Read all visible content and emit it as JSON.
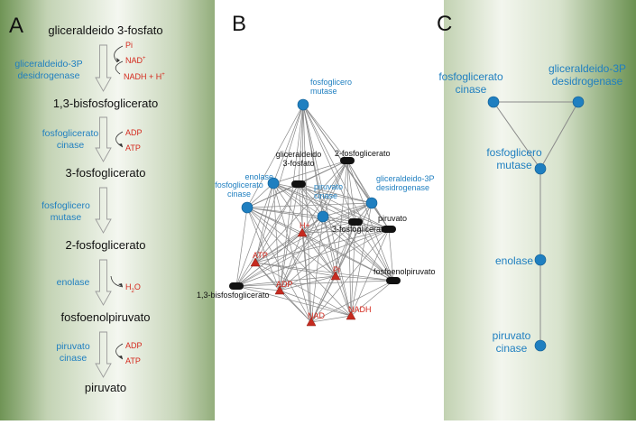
{
  "colors": {
    "metabolite": "#111111",
    "enzyme": "#1f7fc0",
    "cofactor": "#d4291d",
    "edge": "#888888",
    "panel_green": "#6f9455"
  },
  "panels": {
    "A": {
      "letter": "A",
      "metabolites": [
        "gliceraldeido 3-fosfato",
        "1,3-bisfosfoglicerato",
        "3-fosfoglicerato",
        "2-fosfoglicerato",
        "fosfoenolpiruvato",
        "piruvato"
      ],
      "enzymes": [
        [
          "gliceraldeido-3P",
          "desidrogenase"
        ],
        [
          "fosfoglicerato",
          "cinase"
        ],
        [
          "fosfoglicero",
          "mutase"
        ],
        [
          "enolase"
        ],
        [
          "piruvato",
          "cinase"
        ]
      ],
      "cofactors": {
        "step1_in": "Pi",
        "step1_in2": "NAD",
        "step1_in2_sup": "+",
        "step1_out": "NADH + H",
        "step1_out_sup": "+",
        "step2_in": "ADP",
        "step2_out": "ATP",
        "step4_out": "H",
        "step4_out_sub": "2",
        "step4_out_tail": "O",
        "step5_in": "ADP",
        "step5_out": "ATP"
      }
    },
    "B": {
      "letter": "B",
      "nodes": [
        {
          "id": "fosfoglicero_mutase",
          "lines": [
            "fosfoglicero",
            "mutase"
          ],
          "kind": "enzyme"
        },
        {
          "id": "enolase",
          "lines": [
            "enolase"
          ],
          "kind": "enzyme"
        },
        {
          "id": "fosfoglicerato_cinase",
          "lines": [
            "fosfoglicerato",
            "cinase"
          ],
          "kind": "enzyme"
        },
        {
          "id": "piruvato_cinase",
          "lines": [
            "piruvato",
            "cinase"
          ],
          "kind": "enzyme"
        },
        {
          "id": "gapdh",
          "lines": [
            "gliceraldeido-3P",
            "desidrogenase"
          ],
          "kind": "enzyme"
        },
        {
          "id": "2pg",
          "lines": [
            "2-fosfoglicerato"
          ],
          "kind": "metabolite"
        },
        {
          "id": "g3p",
          "lines": [
            "gliceraldeido",
            "3-fosfato"
          ],
          "kind": "metabolite"
        },
        {
          "id": "3pg",
          "lines": [
            "3-fosfoglicerato"
          ],
          "kind": "metabolite"
        },
        {
          "id": "piruvato",
          "lines": [
            "piruvato"
          ],
          "kind": "metabolite"
        },
        {
          "id": "pep",
          "lines": [
            "fosfoenolpiruvato"
          ],
          "kind": "metabolite"
        },
        {
          "id": "13bpg",
          "lines": [
            "1,3-bisfosfoglicerato"
          ],
          "kind": "metabolite"
        },
        {
          "id": "h",
          "lines": [
            "H+"
          ],
          "kind": "cofactor"
        },
        {
          "id": "atp",
          "lines": [
            "ATP"
          ],
          "kind": "cofactor"
        },
        {
          "id": "pi",
          "lines": [
            "Pi"
          ],
          "kind": "cofactor"
        },
        {
          "id": "adp",
          "lines": [
            "ADP"
          ],
          "kind": "cofactor"
        },
        {
          "id": "nad",
          "lines": [
            "NAD"
          ],
          "kind": "cofactor"
        },
        {
          "id": "nadh",
          "lines": [
            "NADH"
          ],
          "kind": "cofactor"
        }
      ]
    },
    "C": {
      "letter": "C",
      "nodes": [
        {
          "id": "c_pgk",
          "lines": [
            "fosfoglicerato",
            "cinase"
          ]
        },
        {
          "id": "c_gapdh",
          "lines": [
            "gliceraldeido-3P",
            "desidrogenase"
          ]
        },
        {
          "id": "c_pgm",
          "lines": [
            "fosfoglicero",
            "mutase"
          ]
        },
        {
          "id": "c_eno",
          "lines": [
            "enolase"
          ]
        },
        {
          "id": "c_pk",
          "lines": [
            "piruvato",
            "cinase"
          ]
        }
      ],
      "edges": [
        [
          "c_pgk",
          "c_gapdh"
        ],
        [
          "c_pgk",
          "c_pgm"
        ],
        [
          "c_gapdh",
          "c_pgm"
        ],
        [
          "c_pgm",
          "c_eno"
        ],
        [
          "c_eno",
          "c_pk"
        ]
      ]
    }
  }
}
